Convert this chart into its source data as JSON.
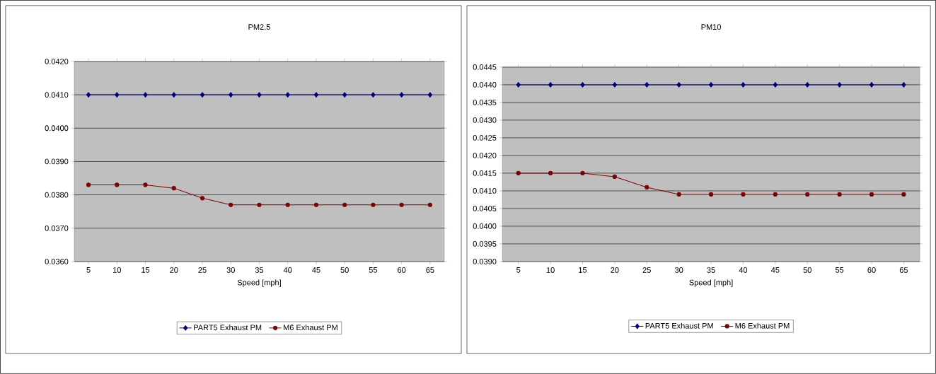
{
  "chart_data": [
    {
      "type": "line",
      "title": "PM2.5",
      "xlabel": "Speed [mph]",
      "categories": [
        "5",
        "10",
        "15",
        "20",
        "25",
        "30",
        "35",
        "40",
        "45",
        "50",
        "55",
        "60",
        "65"
      ],
      "series": [
        {
          "name": "PART5 Exhaust PM",
          "color": "#000080",
          "marker": "diamond",
          "values": [
            0.041,
            0.041,
            0.041,
            0.041,
            0.041,
            0.041,
            0.041,
            0.041,
            0.041,
            0.041,
            0.041,
            0.041,
            0.041
          ]
        },
        {
          "name": "M6 Exhaust PM",
          "color": "#800000",
          "marker": "circle",
          "values": [
            0.0383,
            0.0383,
            0.0383,
            0.0382,
            0.0379,
            0.0377,
            0.0377,
            0.0377,
            0.0377,
            0.0377,
            0.0377,
            0.0377,
            0.0377
          ]
        }
      ],
      "ylim": [
        0.036,
        0.042
      ],
      "yticks": [
        {
          "value": 0.036,
          "label": "0.0360"
        },
        {
          "value": 0.037,
          "label": "0.0370"
        },
        {
          "value": 0.038,
          "label": "0.0380"
        },
        {
          "value": 0.039,
          "label": "0.0390"
        },
        {
          "value": 0.04,
          "label": "0.0400"
        },
        {
          "value": 0.041,
          "label": "0.0410"
        },
        {
          "value": 0.042,
          "label": "0.0420"
        }
      ],
      "grid": "y",
      "legend": "bottom"
    },
    {
      "type": "line",
      "title": "PM10",
      "xlabel": "Speed [mph]",
      "categories": [
        "5",
        "10",
        "15",
        "20",
        "25",
        "30",
        "35",
        "40",
        "45",
        "50",
        "55",
        "60",
        "65"
      ],
      "series": [
        {
          "name": "PART5 Exhaust PM",
          "color": "#000080",
          "marker": "diamond",
          "values": [
            0.044,
            0.044,
            0.044,
            0.044,
            0.044,
            0.044,
            0.044,
            0.044,
            0.044,
            0.044,
            0.044,
            0.044,
            0.044
          ]
        },
        {
          "name": "M6 Exhaust PM",
          "color": "#800000",
          "marker": "circle",
          "values": [
            0.0415,
            0.0415,
            0.0415,
            0.0414,
            0.0411,
            0.0409,
            0.0409,
            0.0409,
            0.0409,
            0.0409,
            0.0409,
            0.0409,
            0.0409
          ]
        }
      ],
      "ylim": [
        0.039,
        0.0445
      ],
      "yticks": [
        {
          "value": 0.039,
          "label": "0.0390"
        },
        {
          "value": 0.0395,
          "label": "0.0395"
        },
        {
          "value": 0.04,
          "label": "0.0400"
        },
        {
          "value": 0.0405,
          "label": "0.0405"
        },
        {
          "value": 0.041,
          "label": "0.0410"
        },
        {
          "value": 0.0415,
          "label": "0.0415"
        },
        {
          "value": 0.042,
          "label": "0.0420"
        },
        {
          "value": 0.0425,
          "label": "0.0425"
        },
        {
          "value": 0.043,
          "label": "0.0430"
        },
        {
          "value": 0.0435,
          "label": "0.0435"
        },
        {
          "value": 0.044,
          "label": "0.0440"
        },
        {
          "value": 0.0445,
          "label": "0.0445"
        }
      ],
      "grid": "y",
      "legend": "bottom"
    }
  ]
}
